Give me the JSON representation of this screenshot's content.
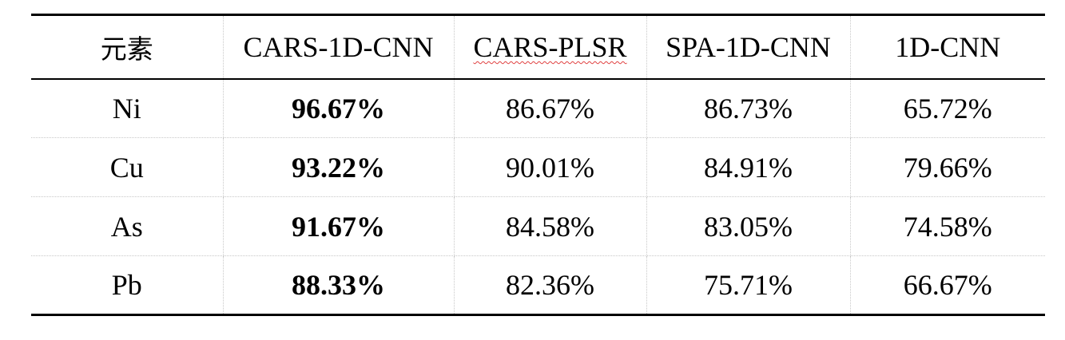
{
  "table": {
    "headers": [
      "元素",
      "CARS-1D-CNN",
      "CARS-PLSR",
      "SPA-1D-CNN",
      "1D-CNN"
    ],
    "rows": [
      {
        "element": "Ni",
        "cars_1d_cnn": "96.67%",
        "cars_plsr": "86.67%",
        "spa_1d_cnn": "86.73%",
        "cnn_1d": "65.72%"
      },
      {
        "element": "Cu",
        "cars_1d_cnn": "93.22%",
        "cars_plsr": "90.01%",
        "spa_1d_cnn": "84.91%",
        "cnn_1d": "79.66%"
      },
      {
        "element": "As",
        "cars_1d_cnn": "91.67%",
        "cars_plsr": "84.58%",
        "spa_1d_cnn": "83.05%",
        "cnn_1d": "74.58%"
      },
      {
        "element": "Pb",
        "cars_1d_cnn": "88.33%",
        "cars_plsr": "82.36%",
        "spa_1d_cnn": "75.71%",
        "cnn_1d": "66.67%"
      }
    ]
  }
}
